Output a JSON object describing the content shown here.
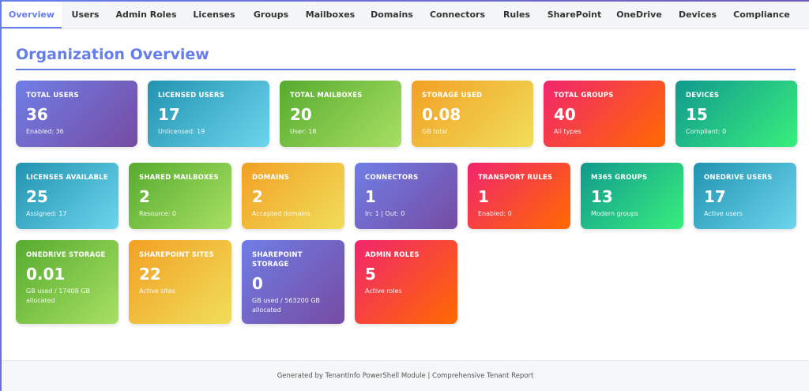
{
  "tabs": [
    "Overview",
    "Users",
    "Admin Roles",
    "Licenses",
    "Groups",
    "Mailboxes",
    "Domains",
    "Connectors",
    "Rules",
    "SharePoint",
    "OneDrive",
    "Devices",
    "Compliance"
  ],
  "title": "Organization Overview",
  "rows": [
    [
      {
        "label": "TOTAL USERS",
        "value": "36",
        "sub": "Enabled: 36"
      },
      {
        "label": "LICENSED USERS",
        "value": "17",
        "sub": "Unlicensed: 19"
      },
      {
        "label": "TOTAL MAILBOXES",
        "value": "20",
        "sub": "User: 18"
      },
      {
        "label": "STORAGE USED",
        "value": "0.08",
        "sub": "GB total"
      },
      {
        "label": "TOTAL GROUPS",
        "value": "40",
        "sub": "All types"
      },
      {
        "label": "DEVICES",
        "value": "15",
        "sub": "Compliant: 0"
      }
    ],
    [
      {
        "label": "LICENSES AVAILABLE",
        "value": "25",
        "sub": "Assigned: 17"
      },
      {
        "label": "SHARED MAILBOXES",
        "value": "2",
        "sub": "Resource: 0"
      },
      {
        "label": "DOMAINS",
        "value": "2",
        "sub": "Accepted domains"
      },
      {
        "label": "CONNECTORS",
        "value": "1",
        "sub": "In: 1 | Out: 0"
      },
      {
        "label": "TRANSPORT RULES",
        "value": "1",
        "sub": "Enabled: 0"
      },
      {
        "label": "M365 GROUPS",
        "value": "13",
        "sub": "Modern groups"
      },
      {
        "label": "ONEDRIVE USERS",
        "value": "17",
        "sub": "Active users"
      }
    ],
    [
      {
        "label": "ONEDRIVE STORAGE",
        "value": "0.01",
        "sub": "GB used / 17408 GB allocated"
      },
      {
        "label": "SHAREPOINT SITES",
        "value": "22",
        "sub": "Active sites"
      },
      {
        "label": "SHAREPOINT STORAGE",
        "value": "0",
        "sub": "GB used / 563200 GB allocated"
      },
      {
        "label": "ADMIN ROLES",
        "value": "5",
        "sub": "Active roles"
      }
    ]
  ],
  "footer": "Generated by TenantInfo PowerShell Module | Comprehensive Tenant Report"
}
